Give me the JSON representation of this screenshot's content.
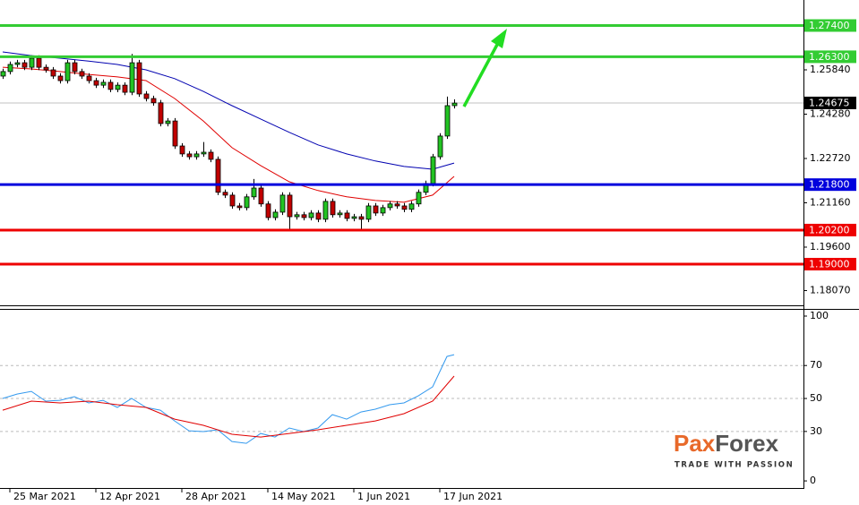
{
  "chart_data": [
    {
      "type": "candlestick",
      "xlim": [
        -0.375,
        111.75
      ],
      "ylim": [
        1.17551,
        1.28298
      ],
      "yticks": [
        {
          "value": 1.2584,
          "label": "1.25840"
        },
        {
          "value": 1.2428,
          "label": "1.24280"
        },
        {
          "value": 1.2272,
          "label": "1.22720"
        },
        {
          "value": 1.2116,
          "label": "1.21160"
        },
        {
          "value": 1.196,
          "label": "1.19600"
        },
        {
          "value": 1.1807,
          "label": "1.18070"
        }
      ],
      "open": [
        1.2562,
        1.2578,
        1.2603,
        1.2609,
        1.2593,
        1.2625,
        1.2593,
        1.2584,
        1.2562,
        1.2546,
        1.2609,
        1.2578,
        1.2562,
        1.2546,
        1.253,
        1.254,
        1.2515,
        1.253,
        1.2505,
        1.2609,
        1.2499,
        1.2483,
        1.2468,
        1.2395,
        1.2404,
        1.2316,
        1.2288,
        1.2278,
        1.2288,
        1.2294,
        1.2269,
        1.2153,
        1.2143,
        1.2105,
        1.2099,
        1.2137,
        1.2168,
        1.2112,
        1.2064,
        1.2083,
        1.2143,
        1.2067,
        1.2074,
        1.2064,
        1.208,
        1.2058,
        1.2121,
        1.2074,
        1.208,
        1.2061,
        1.2067,
        1.2058,
        1.2105,
        1.208,
        1.2099,
        1.2112,
        1.2105,
        1.2093,
        1.2112,
        1.2153,
        1.2184,
        1.2278,
        1.2351,
        1.2458
      ],
      "high": [
        1.2588,
        1.2613,
        1.2619,
        1.2619,
        1.2635,
        1.2635,
        1.2603,
        1.2594,
        1.2572,
        1.2619,
        1.2619,
        1.2588,
        1.2572,
        1.2556,
        1.255,
        1.255,
        1.254,
        1.254,
        1.264,
        1.2619,
        1.2509,
        1.2493,
        1.2478,
        1.2414,
        1.2414,
        1.2326,
        1.2298,
        1.2298,
        1.233,
        1.2304,
        1.2279,
        1.2163,
        1.2153,
        1.2115,
        1.2147,
        1.22,
        1.2178,
        1.2122,
        1.2093,
        1.2153,
        1.2153,
        1.2084,
        1.2084,
        1.209,
        1.209,
        1.2131,
        1.2131,
        1.209,
        1.209,
        1.2077,
        1.2077,
        1.2115,
        1.2115,
        1.2109,
        1.2122,
        1.2122,
        1.2115,
        1.2122,
        1.2163,
        1.2194,
        1.2288,
        1.2361,
        1.249,
        1.248
      ],
      "low": [
        1.2552,
        1.2568,
        1.2593,
        1.2583,
        1.2583,
        1.2583,
        1.2574,
        1.2552,
        1.2536,
        1.2536,
        1.2568,
        1.2552,
        1.2536,
        1.252,
        1.252,
        1.2505,
        1.2505,
        1.2495,
        1.2495,
        1.2489,
        1.2473,
        1.2458,
        1.2385,
        1.2385,
        1.2306,
        1.2278,
        1.2268,
        1.2268,
        1.2278,
        1.2259,
        1.2143,
        1.2133,
        1.2095,
        1.2089,
        1.2089,
        1.2127,
        1.2102,
        1.2054,
        1.2054,
        1.2073,
        1.202,
        1.2057,
        1.2054,
        1.2054,
        1.2048,
        1.2048,
        1.2064,
        1.2064,
        1.2051,
        1.2051,
        1.202,
        1.2048,
        1.207,
        1.207,
        1.2089,
        1.2095,
        1.2083,
        1.2083,
        1.2102,
        1.2143,
        1.2174,
        1.2268,
        1.2341,
        1.2448
      ],
      "close": [
        1.2578,
        1.2603,
        1.2609,
        1.2593,
        1.2625,
        1.2593,
        1.2584,
        1.2562,
        1.2546,
        1.2609,
        1.2578,
        1.2562,
        1.2546,
        1.253,
        1.254,
        1.2515,
        1.253,
        1.2505,
        1.2609,
        1.2499,
        1.2483,
        1.2468,
        1.2395,
        1.2404,
        1.2316,
        1.2288,
        1.2278,
        1.2288,
        1.2294,
        1.2269,
        1.2153,
        1.2143,
        1.2105,
        1.2099,
        1.2137,
        1.2168,
        1.2112,
        1.2064,
        1.2083,
        1.2143,
        1.2067,
        1.2074,
        1.2064,
        1.208,
        1.2058,
        1.2121,
        1.2074,
        1.208,
        1.2061,
        1.2067,
        1.2058,
        1.2105,
        1.208,
        1.2099,
        1.2112,
        1.2105,
        1.2093,
        1.2112,
        1.2153,
        1.2184,
        1.2278,
        1.2351,
        1.2458,
        1.2467
      ],
      "up_color": "#22c322",
      "down_color": "#c00000",
      "lines": [
        {
          "color": "#e00000",
          "x": [
            0,
            4,
            8,
            12,
            16,
            20,
            24,
            28,
            32,
            36,
            40,
            44,
            48,
            52,
            56,
            60,
            63
          ],
          "values": [
            1.2593,
            1.2587,
            1.2578,
            1.2568,
            1.2559,
            1.2546,
            1.2483,
            1.2404,
            1.231,
            1.2247,
            1.219,
            1.2159,
            1.2137,
            1.2124,
            1.2118,
            1.2143,
            1.2209
          ]
        },
        {
          "color": "#0000b0",
          "x": [
            0,
            4,
            8,
            12,
            16,
            20,
            24,
            28,
            32,
            36,
            40,
            44,
            48,
            52,
            56,
            60,
            63
          ],
          "values": [
            1.2647,
            1.2634,
            1.2625,
            1.2615,
            1.2603,
            1.2584,
            1.2553,
            1.2508,
            1.2458,
            1.2411,
            1.2364,
            1.232,
            1.2288,
            1.2263,
            1.2244,
            1.2234,
            1.2256
          ]
        }
      ],
      "levels": [
        {
          "value": 1.274,
          "label": "1.27400",
          "color": "#33cc33"
        },
        {
          "value": 1.263,
          "label": "1.26300",
          "color": "#33cc33"
        },
        {
          "value": 1.218,
          "label": "1.21800",
          "color": "#0000dd"
        },
        {
          "value": 1.202,
          "label": "1.20200",
          "color": "#ee0000"
        },
        {
          "value": 1.19,
          "label": "1.19000",
          "color": "#ee0000"
        }
      ],
      "last_price": {
        "value": 1.24675,
        "label": "1.24675"
      }
    },
    {
      "type": "line",
      "xlim": [
        -0.375,
        111.75
      ],
      "ylim": [
        -4.3,
        103.8
      ],
      "yticks": [
        0,
        30,
        50,
        70,
        100
      ],
      "grid": true,
      "series": [
        {
          "color": "#3399ee",
          "x": [
            0,
            2,
            4,
            6,
            8,
            10,
            12,
            14,
            16,
            18,
            20,
            22,
            24,
            26,
            28,
            30,
            32,
            34,
            36,
            38,
            40,
            42,
            44,
            46,
            48,
            50,
            52,
            54,
            56,
            58,
            60,
            62,
            63
          ],
          "values": [
            50.0,
            52.7,
            54.3,
            48.4,
            48.9,
            51.1,
            47.3,
            48.9,
            44.6,
            50.0,
            44.6,
            42.9,
            36.4,
            30.4,
            29.9,
            31.0,
            23.9,
            22.8,
            28.8,
            26.6,
            32.1,
            29.9,
            32.1,
            40.2,
            37.5,
            41.8,
            43.5,
            46.2,
            47.3,
            51.6,
            57.1,
            75.5,
            76.6
          ]
        },
        {
          "color": "#e00000",
          "x": [
            0,
            4,
            8,
            12,
            16,
            20,
            24,
            28,
            32,
            36,
            40,
            44,
            48,
            52,
            56,
            60,
            63
          ],
          "values": [
            42.9,
            48.4,
            47.3,
            48.4,
            46.2,
            44.6,
            37.5,
            33.7,
            28.3,
            26.6,
            28.8,
            31.0,
            33.7,
            36.4,
            40.8,
            48.4,
            63.6
          ]
        }
      ],
      "xticks": [
        {
          "value": 1,
          "label": "25 Mar 2021"
        },
        {
          "value": 13,
          "label": "12 Apr 2021"
        },
        {
          "value": 25,
          "label": "28 Apr 2021"
        },
        {
          "value": 37,
          "label": "14 May 2021"
        },
        {
          "value": 49,
          "label": "1 Jun 2021"
        },
        {
          "value": 61,
          "label": "17 Jun 2021"
        }
      ]
    }
  ],
  "logo": {
    "brand_a": "Pax",
    "brand_b": "Forex",
    "tagline": "TRADE WITH PASSION"
  }
}
